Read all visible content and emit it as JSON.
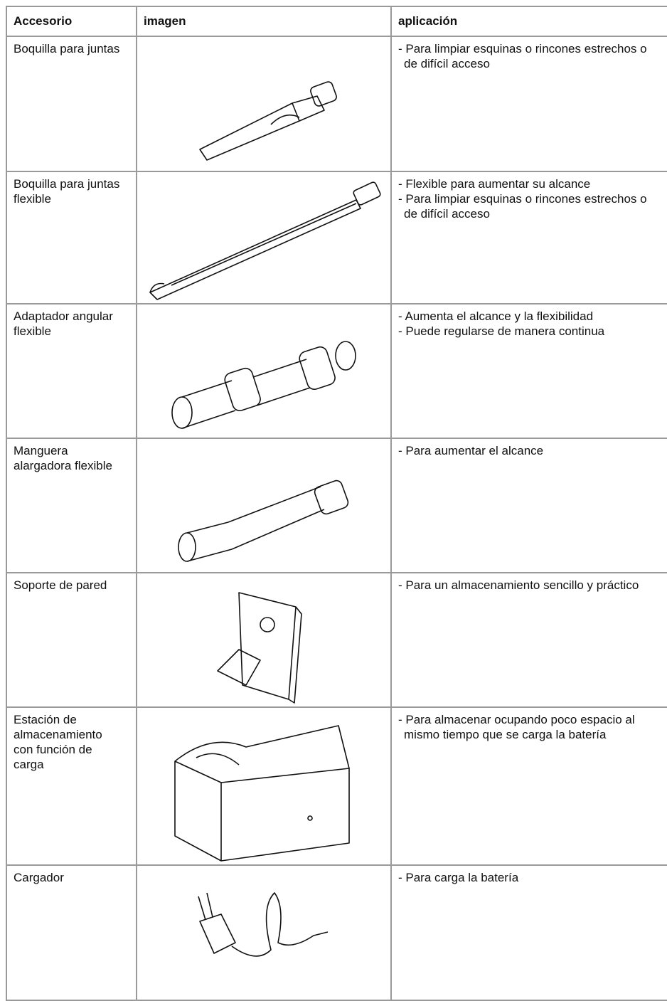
{
  "table": {
    "header": [
      "Accesorio",
      "imagen",
      "aplicación"
    ],
    "rows": [
      {
        "accessory": "Boquilla para juntas",
        "application": [
          "- Para limpiar esquinas o rincones estrechos o de difícil acceso"
        ]
      },
      {
        "accessory": "Boquilla para juntas flexible",
        "application": [
          "- Flexible para aumentar su alcance",
          "- Para limpiar esquinas o rincones estrechos o de difícil acceso"
        ]
      },
      {
        "accessory": "Adaptador angular flexible",
        "application": [
          "- Aumenta el alcance y la flexibilidad",
          "- Puede regularse de manera continua"
        ]
      },
      {
        "accessory": "Manguera alargadora flexible",
        "application": [
          "- Para aumentar el alcance"
        ]
      },
      {
        "accessory": "Soporte de pared",
        "application": [
          "- Para un almacenamiento sencillo y práctico"
        ]
      },
      {
        "accessory": "Estación de almacenamiento con función de carga",
        "application": [
          "- Para almacenar ocupando poco espacio al mismo tiempo que se carga la batería"
        ]
      },
      {
        "accessory": "Cargador",
        "application": [
          "- Para carga la batería"
        ]
      }
    ]
  }
}
